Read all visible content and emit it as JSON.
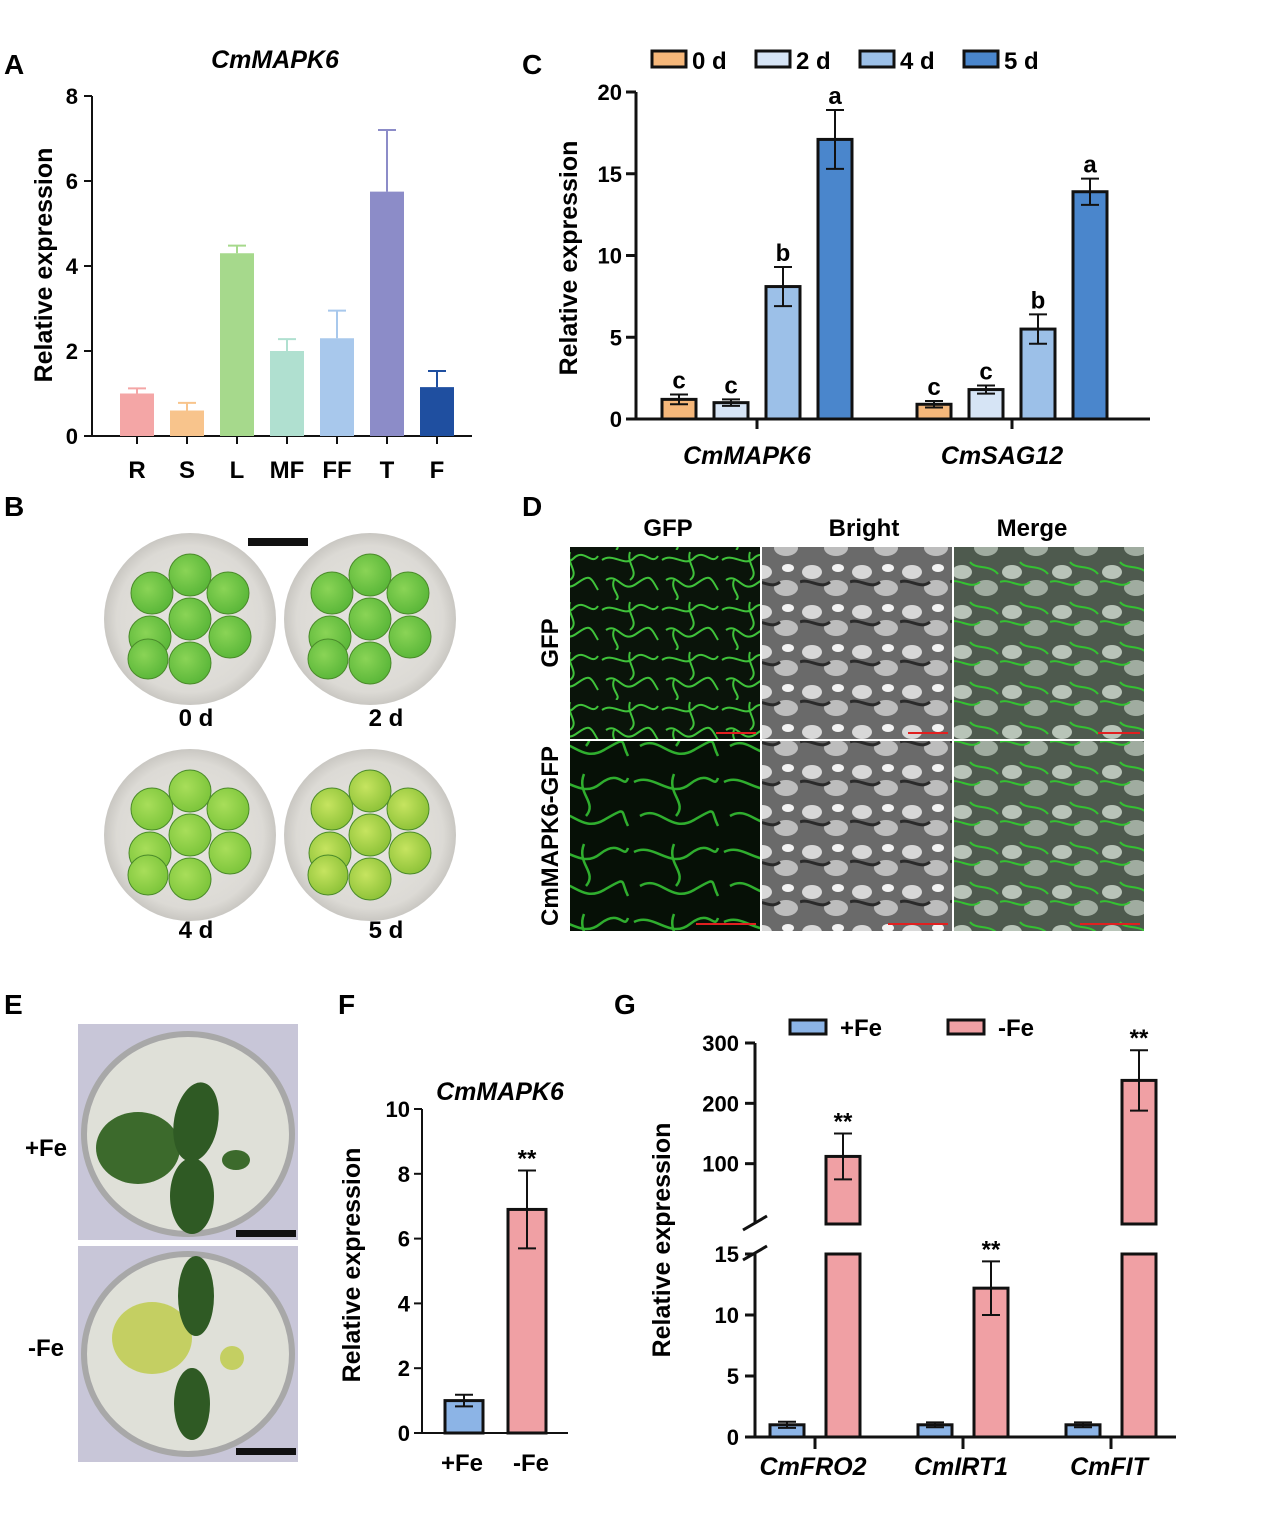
{
  "panels": {
    "A": "A",
    "B": "B",
    "C": "C",
    "D": "D",
    "E": "E",
    "F": "F",
    "G": "G"
  },
  "panel_b": {
    "labels": [
      "0 d",
      "2 d",
      "4 d",
      "5 d"
    ]
  },
  "panel_d": {
    "col_headers": [
      "GFP",
      "Bright",
      "Merge"
    ],
    "row_labels": [
      "GFP",
      "CmMAPK6-GFP"
    ]
  },
  "panel_e": {
    "labels": [
      "+Fe",
      "-Fe"
    ]
  },
  "chart_data": [
    {
      "panel": "A",
      "type": "bar",
      "title": "CmMAPK6",
      "ylabel": "Relative expression",
      "ylim": [
        0,
        8
      ],
      "yticks": [
        0,
        2,
        4,
        6,
        8
      ],
      "categories": [
        "R",
        "S",
        "L",
        "MF",
        "FF",
        "T",
        "F"
      ],
      "values": [
        1.0,
        0.6,
        4.3,
        2.0,
        2.3,
        5.75,
        1.15
      ],
      "errors": [
        0.12,
        0.18,
        0.18,
        0.28,
        0.65,
        1.45,
        0.38
      ],
      "colors": [
        "#f4a6a6",
        "#f8c48c",
        "#a6d98c",
        "#b0e0d0",
        "#a8c8ec",
        "#8c8cc8",
        "#1f4fa0"
      ]
    },
    {
      "panel": "C",
      "type": "bar",
      "ylabel": "Relative expression",
      "ylim": [
        0,
        20
      ],
      "yticks": [
        0,
        5,
        10,
        15,
        20
      ],
      "categories": [
        "CmMAPK6",
        "CmSAG12"
      ],
      "series": [
        {
          "name": "0 d",
          "color": "#f5b77a",
          "values": [
            1.2,
            0.9
          ],
          "errors": [
            0.3,
            0.2
          ],
          "letters": [
            "c",
            "c"
          ]
        },
        {
          "name": "2 d",
          "color": "#d6e4f5",
          "values": [
            1.0,
            1.8
          ],
          "errors": [
            0.2,
            0.25
          ],
          "letters": [
            "c",
            "c"
          ]
        },
        {
          "name": "4 d",
          "color": "#9cc0e8",
          "values": [
            8.1,
            5.5
          ],
          "errors": [
            1.2,
            0.9
          ],
          "letters": [
            "b",
            "b"
          ]
        },
        {
          "name": "5 d",
          "color": "#4a86cc",
          "values": [
            17.1,
            13.9
          ],
          "errors": [
            1.8,
            0.8
          ],
          "letters": [
            "a",
            "a"
          ]
        }
      ]
    },
    {
      "panel": "F",
      "type": "bar",
      "title": "CmMAPK6",
      "ylabel": "Relative expression",
      "ylim": [
        0,
        10
      ],
      "yticks": [
        0,
        2,
        4,
        6,
        8,
        10
      ],
      "categories": [
        "+Fe",
        "-Fe"
      ],
      "values": [
        1.0,
        6.9
      ],
      "errors": [
        0.18,
        1.2
      ],
      "sig": [
        "",
        "**"
      ],
      "colors": [
        "#8cb4e6",
        "#f0a0a4"
      ]
    },
    {
      "panel": "G",
      "type": "bar",
      "ylabel": "Relative expression",
      "broken_axis": {
        "lower": [
          0,
          15
        ],
        "upper": [
          0,
          300
        ]
      },
      "yticks_lower": [
        0,
        5,
        10,
        15
      ],
      "yticks_upper": [
        100,
        200,
        300
      ],
      "categories": [
        "CmFRO2",
        "CmIRT1",
        "CmFIT"
      ],
      "series": [
        {
          "name": "+Fe",
          "color": "#8cb4e6",
          "values": [
            1.0,
            1.0,
            1.0
          ],
          "errors": [
            0.25,
            0.2,
            0.2
          ]
        },
        {
          "name": "-Fe",
          "color": "#f0a0a4",
          "values": [
            112,
            12.2,
            238
          ],
          "errors": [
            38,
            2.2,
            50
          ],
          "sig": [
            "**",
            "**",
            "**"
          ]
        }
      ]
    }
  ]
}
